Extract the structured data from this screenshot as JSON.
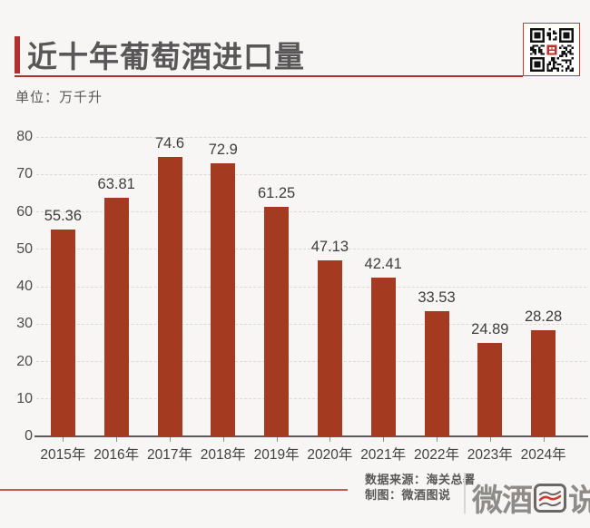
{
  "header": {
    "title": "近十年葡萄酒进口量",
    "unit_label": "单位：万千升",
    "accent_color": "#b1302d"
  },
  "chart_data": {
    "type": "bar",
    "categories": [
      "2015年",
      "2016年",
      "2017年",
      "2018年",
      "2019年",
      "2020年",
      "2021年",
      "2022年",
      "2023年",
      "2024年"
    ],
    "values": [
      55.36,
      63.81,
      74.6,
      72.9,
      61.25,
      47.13,
      42.41,
      33.53,
      24.89,
      28.28
    ],
    "title": "近十年葡萄酒进口量",
    "xlabel": "",
    "ylabel": "万千升",
    "ylim": [
      0,
      80
    ],
    "yticks": [
      0,
      10,
      20,
      30,
      40,
      50,
      60,
      70,
      80
    ],
    "grid": "horizontal-dashed",
    "legend": "none",
    "bar_color": "#a43a1f",
    "value_label_color": "#3e3c3c",
    "background_color": "#f7f6f4"
  },
  "footer": {
    "source_label": "数据来源：海关总署",
    "credit_label": "制图：微酒图说",
    "logo_text_left": "微酒",
    "logo_text_right": "说",
    "logo_full_name": "微酒图说"
  }
}
